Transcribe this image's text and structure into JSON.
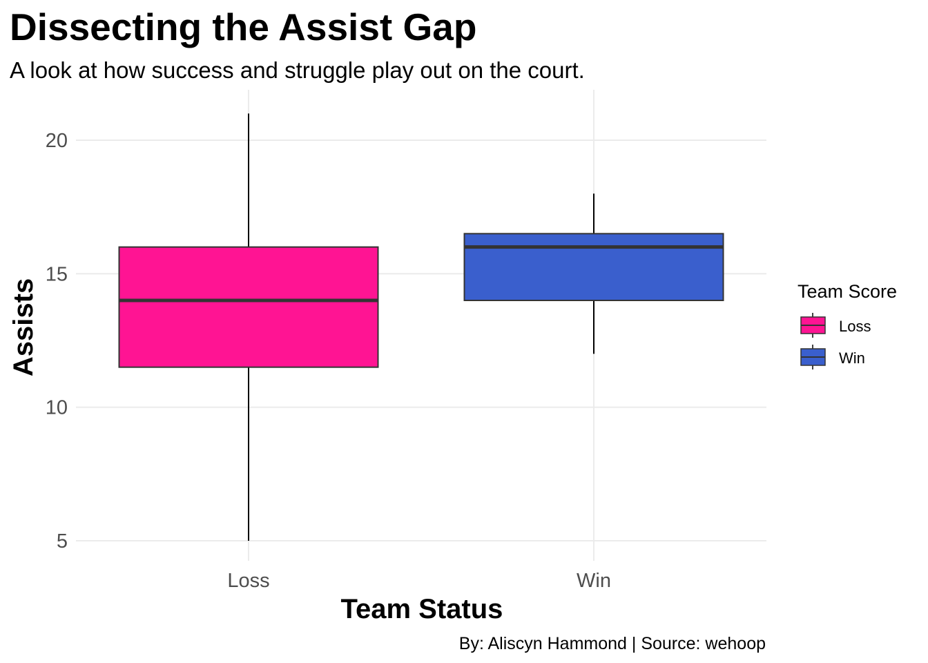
{
  "chart_data": {
    "type": "boxplot",
    "title": "Dissecting the Assist Gap",
    "subtitle": "A look at how success and struggle play out on the court.",
    "xlabel": "Team Status",
    "ylabel": "Assists",
    "caption": "By: Aliscyn Hammond | Source: wehoop",
    "categories": [
      "Loss",
      "Win"
    ],
    "ylim": [
      4.2,
      22
    ],
    "yticks": [
      5,
      10,
      15,
      20
    ],
    "grid": true,
    "legend": {
      "title": "Team Score",
      "position": "right",
      "entries": [
        "Loss",
        "Win"
      ]
    },
    "series": [
      {
        "name": "Loss",
        "color": "#ff1493",
        "min": 5,
        "q1": 11.5,
        "median": 14,
        "q3": 16,
        "max": 21
      },
      {
        "name": "Win",
        "color": "#3a5fcd",
        "min": 12,
        "q1": 14,
        "median": 16,
        "q3": 16.5,
        "max": 18
      }
    ]
  }
}
